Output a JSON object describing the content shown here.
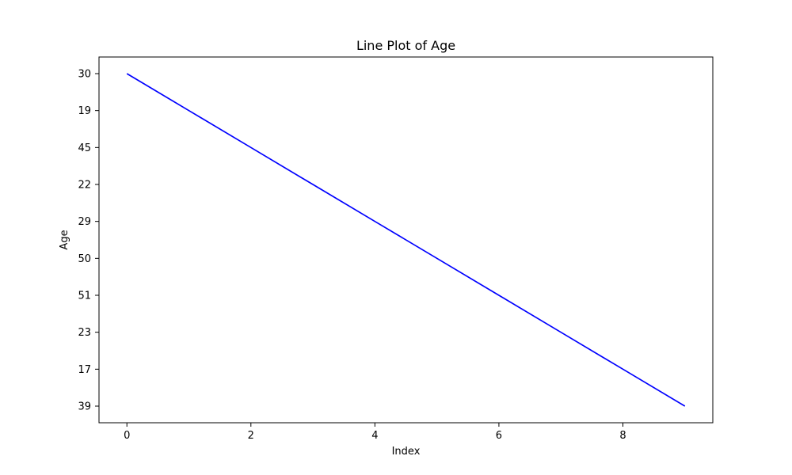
{
  "chart_data": {
    "type": "line",
    "title": "Line Plot of Age",
    "xlabel": "Index",
    "ylabel": "Age",
    "x": [
      0,
      1,
      2,
      3,
      4,
      5,
      6,
      7,
      8,
      9
    ],
    "y_categories": [
      "30",
      "19",
      "45",
      "22",
      "29",
      "50",
      "51",
      "23",
      "17",
      "39"
    ],
    "series": [
      {
        "values": [
          "30",
          "19",
          "45",
          "22",
          "29",
          "50",
          "51",
          "23",
          "17",
          "39"
        ],
        "color": "#0000ff"
      }
    ],
    "x_ticks": [
      0,
      2,
      4,
      6,
      8
    ],
    "xlim": [
      -0.45,
      9.45
    ],
    "ylim_category_order": "first-at-top",
    "grid": false,
    "legend": "none"
  }
}
